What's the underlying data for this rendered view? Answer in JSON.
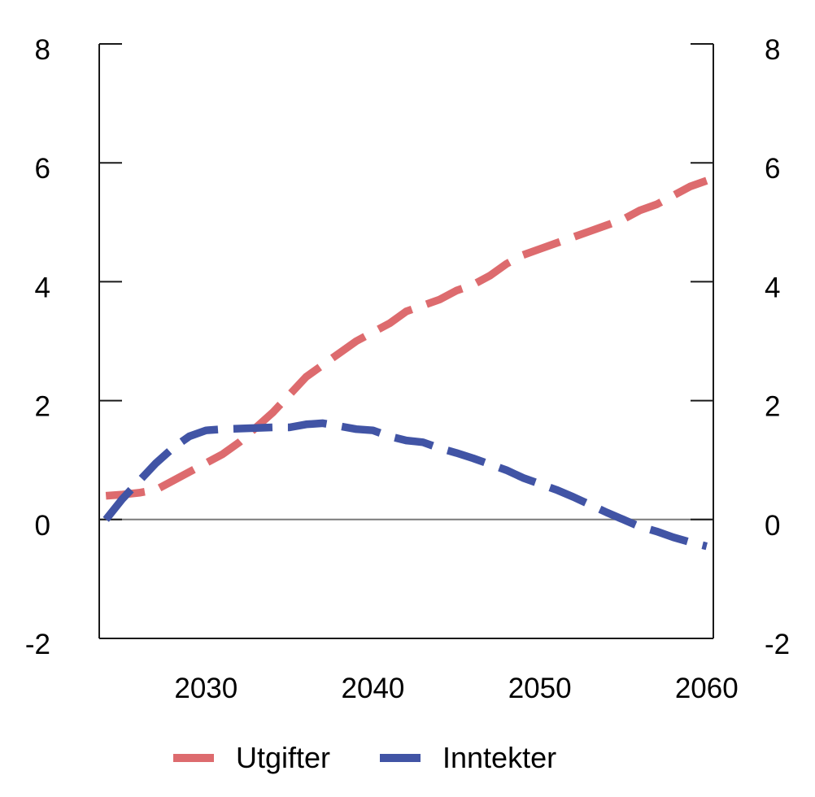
{
  "figure": {
    "background": "#ffffff"
  },
  "chart_data": {
    "type": "line",
    "title": "",
    "xlabel": "",
    "ylabel": "",
    "xlim": [
      2023.6,
      2060.4
    ],
    "ylim": [
      -2,
      8
    ],
    "x_ticks": [
      2030,
      2040,
      2050,
      2060
    ],
    "y_ticks": [
      8,
      6,
      4,
      2,
      0,
      -2
    ],
    "y_axis_sides": "both",
    "grid": "zero-line-only",
    "legend_position": "bottom",
    "axis_color": "#1a1a1a",
    "zero_line_color": "#7a7a7a",
    "line_style": "dashed",
    "series": [
      {
        "name": "Utgifter",
        "color": "#dd6b6e",
        "style": "dashed",
        "x": [
          2024,
          2025,
          2026,
          2027,
          2028,
          2029,
          2030,
          2031,
          2032,
          2033,
          2034,
          2035,
          2036,
          2037,
          2038,
          2039,
          2040,
          2041,
          2042,
          2043,
          2044,
          2045,
          2046,
          2047,
          2048,
          2049,
          2050,
          2051,
          2052,
          2053,
          2054,
          2055,
          2056,
          2057,
          2058,
          2059,
          2060
        ],
        "values": [
          0.4,
          0.42,
          0.45,
          0.5,
          0.65,
          0.8,
          0.95,
          1.1,
          1.3,
          1.55,
          1.8,
          2.1,
          2.4,
          2.6,
          2.8,
          3.0,
          3.15,
          3.3,
          3.5,
          3.6,
          3.7,
          3.85,
          3.95,
          4.1,
          4.3,
          4.45,
          4.55,
          4.65,
          4.75,
          4.85,
          4.95,
          5.05,
          5.2,
          5.3,
          5.45,
          5.6,
          5.7
        ]
      },
      {
        "name": "Inntekter",
        "color": "#4154a5",
        "style": "dashed",
        "x": [
          2024,
          2025,
          2026,
          2027,
          2028,
          2029,
          2030,
          2031,
          2032,
          2033,
          2034,
          2035,
          2036,
          2037,
          2038,
          2039,
          2040,
          2041,
          2042,
          2043,
          2044,
          2045,
          2046,
          2047,
          2048,
          2049,
          2050,
          2051,
          2052,
          2053,
          2054,
          2055,
          2056,
          2057,
          2058,
          2059,
          2060
        ],
        "values": [
          0.0,
          0.35,
          0.65,
          0.95,
          1.2,
          1.4,
          1.5,
          1.52,
          1.53,
          1.54,
          1.55,
          1.55,
          1.6,
          1.62,
          1.57,
          1.52,
          1.5,
          1.4,
          1.33,
          1.3,
          1.2,
          1.12,
          1.03,
          0.93,
          0.83,
          0.7,
          0.6,
          0.5,
          0.38,
          0.25,
          0.12,
          0.0,
          -0.12,
          -0.2,
          -0.3,
          -0.38,
          -0.45
        ]
      }
    ]
  }
}
